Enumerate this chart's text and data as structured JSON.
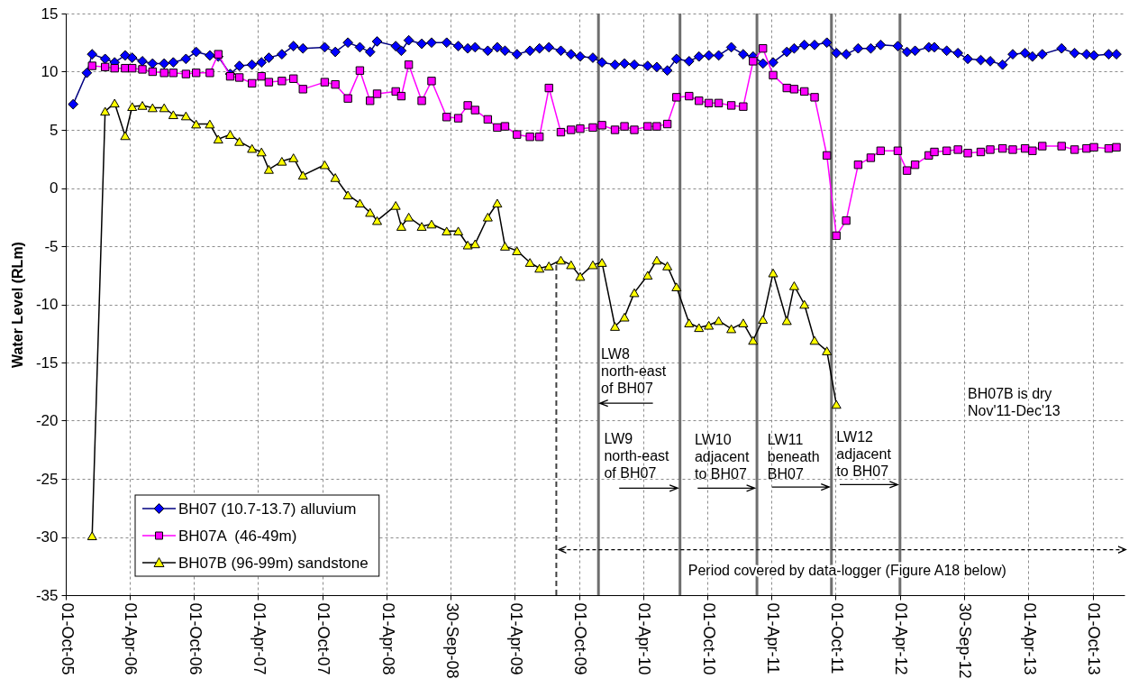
{
  "chart_data": {
    "type": "line",
    "ylabel": "Water Level (RLm)",
    "xlim": [
      "2005-10-01",
      "2013-12-31"
    ],
    "xticks": [
      {
        "value": "2005-10-01",
        "label": "01-Oct-05"
      },
      {
        "value": "2006-04-01",
        "label": "01-Apr-06"
      },
      {
        "value": "2006-10-01",
        "label": "01-Oct-06"
      },
      {
        "value": "2007-04-01",
        "label": "01-Apr-07"
      },
      {
        "value": "2007-10-01",
        "label": "01-Oct-07"
      },
      {
        "value": "2008-04-01",
        "label": "01-Apr-08"
      },
      {
        "value": "2008-09-30",
        "label": "30-Sep-08"
      },
      {
        "value": "2009-04-01",
        "label": "01-Apr-09"
      },
      {
        "value": "2009-10-01",
        "label": "01-Oct-09"
      },
      {
        "value": "2010-04-01",
        "label": "01-Apr-10"
      },
      {
        "value": "2010-10-01",
        "label": "01-Oct-10"
      },
      {
        "value": "2011-04-01",
        "label": "01-Apr-11"
      },
      {
        "value": "2011-10-01",
        "label": "01-Oct-11"
      },
      {
        "value": "2012-04-01",
        "label": "01-Apr-12"
      },
      {
        "value": "2012-09-30",
        "label": "30-Sep-12"
      },
      {
        "value": "2013-04-01",
        "label": "01-Apr-13"
      },
      {
        "value": "2013-10-01",
        "label": "01-Oct-13"
      }
    ],
    "ylim": [
      -35,
      15
    ],
    "yticks": [
      -35,
      -30,
      -25,
      -20,
      -15,
      -10,
      -5,
      0,
      5,
      10,
      15
    ],
    "grid": true,
    "legend": "bottom left",
    "series": [
      {
        "name": "BH07 (10.7-13.7) alluvium",
        "color": "#000080",
        "marker": "diamond",
        "x": [
          "2005-10-22",
          "2005-11-30",
          "2005-12-15",
          "2006-01-21",
          "2006-02-17",
          "2006-03-19",
          "2006-04-08",
          "2006-05-07",
          "2006-06-05",
          "2006-07-08",
          "2006-08-03",
          "2006-09-08",
          "2006-10-07",
          "2006-11-15",
          "2006-12-09",
          "2007-01-12",
          "2007-02-07",
          "2007-03-15",
          "2007-04-11",
          "2007-05-02",
          "2007-06-08",
          "2007-07-11",
          "2007-08-07",
          "2007-10-08",
          "2007-11-07",
          "2007-12-13",
          "2008-01-16",
          "2008-02-14",
          "2008-03-05",
          "2008-04-27",
          "2008-05-13",
          "2008-06-03",
          "2008-07-10",
          "2008-08-07",
          "2008-09-19",
          "2008-10-22",
          "2008-11-18",
          "2008-12-09",
          "2009-01-14",
          "2009-02-10",
          "2009-03-04",
          "2009-04-07",
          "2009-05-14",
          "2009-06-10",
          "2009-07-07",
          "2009-08-10",
          "2009-09-08",
          "2009-10-04",
          "2009-11-09",
          "2009-12-05",
          "2010-01-11",
          "2010-02-07",
          "2010-03-07",
          "2010-04-14",
          "2010-05-10",
          "2010-06-09",
          "2010-07-05",
          "2010-08-10",
          "2010-09-07",
          "2010-10-05",
          "2010-11-02",
          "2010-12-08",
          "2011-01-11",
          "2011-02-08",
          "2011-03-08",
          "2011-04-06",
          "2011-05-15",
          "2011-06-05",
          "2011-07-04",
          "2011-08-02",
          "2011-09-06",
          "2011-10-03",
          "2011-10-31",
          "2011-12-04",
          "2012-01-09",
          "2012-02-06",
          "2012-03-26",
          "2012-04-21",
          "2012-05-14",
          "2012-06-22",
          "2012-07-08",
          "2012-08-12",
          "2012-09-13",
          "2012-10-11",
          "2012-11-17",
          "2012-12-14",
          "2013-01-18",
          "2013-02-16",
          "2013-03-23",
          "2013-04-13",
          "2013-05-11",
          "2013-07-05",
          "2013-08-11",
          "2013-09-14",
          "2013-10-05",
          "2013-11-16",
          "2013-12-08"
        ],
        "values": [
          7.2,
          9.9,
          11.5,
          11.1,
          10.8,
          11.4,
          11.2,
          10.9,
          10.7,
          10.7,
          10.8,
          11.1,
          11.7,
          11.4,
          11.3,
          9.8,
          10.5,
          10.6,
          10.8,
          11.2,
          11.5,
          12.2,
          12.0,
          12.1,
          11.7,
          12.5,
          12.1,
          11.7,
          12.6,
          12.2,
          11.8,
          12.7,
          12.4,
          12.5,
          12.5,
          12.2,
          12.0,
          12.1,
          11.8,
          12.1,
          11.8,
          11.5,
          11.8,
          12.0,
          12.1,
          11.8,
          11.5,
          11.3,
          11.2,
          10.8,
          10.6,
          10.7,
          10.6,
          10.5,
          10.4,
          10.1,
          11.1,
          10.9,
          11.3,
          11.4,
          11.4,
          12.1,
          11.5,
          11.3,
          10.7,
          10.8,
          11.7,
          12.0,
          12.3,
          12.3,
          12.5,
          11.6,
          11.5,
          12.0,
          12.0,
          12.3,
          12.2,
          11.7,
          11.8,
          12.1,
          12.1,
          11.8,
          11.6,
          11.1,
          11.0,
          10.9,
          10.6,
          11.5,
          11.6,
          11.3,
          11.5,
          12.0,
          11.6,
          11.5,
          11.4,
          11.5,
          11.5
        ],
        "colors": [
          "#0000ff",
          "#0000ff",
          "#0000ff",
          "#0000ff",
          "#0000ff",
          "#0000ff",
          "#0000ff",
          "#0000ff",
          "#0000ff",
          "#0000ff",
          "#0000ff",
          "#0000ff",
          "#0000ff",
          "#0000ff",
          "#0000ff",
          "#0000ff",
          "#0000ff",
          "#0000ff",
          "#0000ff",
          "#0000ff",
          "#0000ff",
          "#0000ff",
          "#0000ff",
          "#0000ff",
          "#0000ff",
          "#0000ff",
          "#0000ff",
          "#0000ff",
          "#0000ff",
          "#0000ff",
          "#0000ff",
          "#0000ff",
          "#0000ff",
          "#0000ff",
          "#0000ff",
          "#0000ff",
          "#0000ff",
          "#0000ff",
          "#0000ff",
          "#0000ff",
          "#0000ff",
          "#0000ff",
          "#0000ff",
          "#0000ff",
          "#0000ff",
          "#0000ff",
          "#0000ff",
          "#0000ff",
          "#0000ff",
          "#0000ff",
          "#0000ff",
          "#0000ff",
          "#0000ff",
          "#0000ff",
          "#0000ff",
          "#0000ff",
          "#0000ff",
          "#0000ff",
          "#0000ff",
          "#0000ff",
          "#0000ff",
          "#0000ff",
          "#0000ff",
          "#0000ff",
          "#0000ff",
          "#0000ff",
          "#0000ff",
          "#0000ff",
          "#0000ff",
          "#0000ff",
          "#0000ff",
          "#0000ff",
          "#0000ff",
          "#0000ff",
          "#0000ff",
          "#0000ff",
          "#0000ff",
          "#0000ff",
          "#0000ff",
          "#0000ff",
          "#0000ff",
          "#0000ff",
          "#0000ff",
          "#0000ff",
          "#0000ff",
          "#0000ff",
          "#0000ff",
          "#0000ff",
          "#0000ff",
          "#0000ff",
          "#0000ff",
          "#0000ff",
          "#0000ff",
          "#0000ff",
          "#0000ff",
          "#0000ff",
          "#0000ff"
        ]
      },
      {
        "name": "BH07A  (46-49m)",
        "color": "#ff00ff",
        "marker": "square",
        "x": [
          "2005-12-15",
          "2006-01-21",
          "2006-02-17",
          "2006-03-19",
          "2006-04-08",
          "2006-05-07",
          "2006-06-05",
          "2006-07-08",
          "2006-08-03",
          "2006-09-08",
          "2006-10-07",
          "2006-11-15",
          "2006-12-09",
          "2007-01-12",
          "2007-02-07",
          "2007-03-15",
          "2007-04-11",
          "2007-05-02",
          "2007-06-08",
          "2007-07-11",
          "2007-08-07",
          "2007-10-08",
          "2007-11-07",
          "2007-12-13",
          "2008-01-16",
          "2008-02-14",
          "2008-03-05",
          "2008-04-27",
          "2008-05-13",
          "2008-06-03",
          "2008-07-10",
          "2008-08-07",
          "2008-09-19",
          "2008-10-22",
          "2008-11-18",
          "2008-12-09",
          "2009-01-14",
          "2009-02-10",
          "2009-03-04",
          "2009-04-07",
          "2009-05-14",
          "2009-06-10",
          "2009-07-07",
          "2009-08-10",
          "2009-09-08",
          "2009-10-04",
          "2009-11-09",
          "2009-12-05",
          "2010-01-11",
          "2010-02-07",
          "2010-03-07",
          "2010-04-14",
          "2010-05-10",
          "2010-06-09",
          "2010-07-05",
          "2010-08-10",
          "2010-09-07",
          "2010-10-05",
          "2010-11-02",
          "2010-12-08",
          "2011-01-11",
          "2011-02-08",
          "2011-03-08",
          "2011-04-06",
          "2011-05-15",
          "2011-06-05",
          "2011-07-04",
          "2011-08-02",
          "2011-09-06",
          "2011-10-03",
          "2011-10-31",
          "2011-12-04",
          "2012-01-09",
          "2012-02-06",
          "2012-03-26",
          "2012-04-21",
          "2012-05-14",
          "2012-06-22",
          "2012-07-08",
          "2012-08-12",
          "2012-09-13",
          "2012-10-11",
          "2012-11-17",
          "2012-12-14",
          "2013-01-18",
          "2013-02-16",
          "2013-03-23",
          "2013-04-13",
          "2013-05-11",
          "2013-07-05",
          "2013-08-11",
          "2013-09-14",
          "2013-10-05",
          "2013-11-16",
          "2013-12-08"
        ],
        "values": [
          10.5,
          10.4,
          10.3,
          10.3,
          10.3,
          10.2,
          10.0,
          9.9,
          9.9,
          9.8,
          9.9,
          9.9,
          11.5,
          9.6,
          9.5,
          9.0,
          9.6,
          9.1,
          9.2,
          9.4,
          8.5,
          9.1,
          8.9,
          7.7,
          10.1,
          7.5,
          8.1,
          8.3,
          7.9,
          10.6,
          7.5,
          9.2,
          6.1,
          6.0,
          7.1,
          6.7,
          5.9,
          5.2,
          5.3,
          4.6,
          4.4,
          4.4,
          8.6,
          4.8,
          5.0,
          5.1,
          5.2,
          5.4,
          5.0,
          5.3,
          5.0,
          5.3,
          5.3,
          5.5,
          7.8,
          7.9,
          7.5,
          7.3,
          7.3,
          7.1,
          7.0,
          10.9,
          12.0,
          9.7,
          8.6,
          8.5,
          8.3,
          7.8,
          2.8,
          -4.1,
          -2.8,
          2.0,
          2.6,
          3.2,
          3.2,
          1.5,
          2.0,
          2.8,
          3.1,
          3.2,
          3.3,
          3.0,
          3.1,
          3.3,
          3.4,
          3.3,
          3.4,
          3.2,
          3.6,
          3.6,
          3.3,
          3.4,
          3.5,
          3.4,
          3.5
        ]
      },
      {
        "name": "BH07B (96-99m) sandstone",
        "color": "#000000",
        "marker": "triangle",
        "x": [
          "2005-12-15",
          "2006-01-21",
          "2006-02-17",
          "2006-03-19",
          "2006-04-08",
          "2006-05-07",
          "2006-06-05",
          "2006-07-08",
          "2006-08-03",
          "2006-09-08",
          "2006-10-07",
          "2006-11-15",
          "2006-12-09",
          "2007-01-12",
          "2007-02-07",
          "2007-03-15",
          "2007-04-11",
          "2007-05-02",
          "2007-06-08",
          "2007-07-11",
          "2007-08-07",
          "2007-10-08",
          "2007-11-07",
          "2007-12-13",
          "2008-01-16",
          "2008-02-14",
          "2008-03-05",
          "2008-04-27",
          "2008-05-13",
          "2008-06-03",
          "2008-07-10",
          "2008-08-07",
          "2008-09-19",
          "2008-10-22",
          "2008-11-18",
          "2008-12-09",
          "2009-01-14",
          "2009-02-10",
          "2009-03-04",
          "2009-04-07",
          "2009-05-14",
          "2009-06-10",
          "2009-07-07",
          "2009-08-10",
          "2009-09-08",
          "2009-10-04",
          "2009-11-09",
          "2009-12-05",
          "2010-01-11",
          "2010-02-07",
          "2010-03-07",
          "2010-04-14",
          "2010-05-10",
          "2010-06-09",
          "2010-07-05",
          "2010-08-10",
          "2010-09-07",
          "2010-10-05",
          "2010-11-02",
          "2010-12-08",
          "2011-01-11",
          "2011-02-08",
          "2011-03-08",
          "2011-04-06",
          "2011-05-15",
          "2011-06-05",
          "2011-07-04",
          "2011-08-02",
          "2011-09-06",
          "2011-10-03"
        ],
        "values": [
          -29.9,
          6.6,
          7.3,
          4.5,
          7.0,
          7.1,
          6.9,
          6.9,
          6.3,
          6.2,
          5.5,
          5.5,
          4.2,
          4.6,
          4.0,
          3.4,
          3.1,
          1.6,
          2.3,
          2.6,
          1.1,
          2.0,
          0.9,
          -0.6,
          -1.3,
          -2.1,
          -2.8,
          -1.5,
          -3.3,
          -2.5,
          -3.3,
          -3.1,
          -3.7,
          -3.7,
          -4.9,
          -4.8,
          -2.5,
          -1.3,
          -5.0,
          -5.4,
          -6.4,
          -6.9,
          -6.7,
          -6.2,
          -6.6,
          -7.6,
          -6.6,
          -6.4,
          -11.9,
          -11.1,
          -9.0,
          -7.5,
          -6.2,
          -6.7,
          -8.5,
          -11.6,
          -12.0,
          -11.8,
          -11.4,
          -12.1,
          -11.6,
          -13.1,
          -11.3,
          -7.3,
          -11.4,
          -8.4,
          -10.0,
          -13.1,
          -14.0,
          -18.6
        ],
        "colors": [
          "#ffff00",
          "#ffff00",
          "#ffff00",
          "#ffff00",
          "#ffff00",
          "#ffff00",
          "#ffff00",
          "#ffff00",
          "#ffff00",
          "#ffff00",
          "#ffff00",
          "#ffff00",
          "#ffff00",
          "#ffff00",
          "#ffff00",
          "#ffff00",
          "#ffff00",
          "#ffff00",
          "#ffff00",
          "#ffff00",
          "#ffff00",
          "#ffff00",
          "#ffff00",
          "#ffff00",
          "#ffff00",
          "#ffff00",
          "#ffff00",
          "#ffff00",
          "#ffff00",
          "#ffff00",
          "#ffff00",
          "#ffff00",
          "#ffff00",
          "#ffff00",
          "#ffff00",
          "#ffff00",
          "#ffff00",
          "#ffff00",
          "#ffff00",
          "#ffff00",
          "#ffff00",
          "#ffff00",
          "#ffff00",
          "#ffff00",
          "#ffff00",
          "#ffff00",
          "#ffff00",
          "#ffff00",
          "#ffff00",
          "#ffff00",
          "#ffff00",
          "#ffff00",
          "#ffff00",
          "#ffff00",
          "#ffff00",
          "#ffff00",
          "#ffff00",
          "#ffff00",
          "#ffff00",
          "#ffff00",
          "#ffff00",
          "#ffff00",
          "#ffff00",
          "#ffff00",
          "#ffff00",
          "#ffff00",
          "#ffff00",
          "#ffff00",
          "#ffff00",
          "#ffff00"
        ]
      }
    ],
    "ref_lines": [
      {
        "axis": "x",
        "value": "2009-07-28",
        "color": "#404040",
        "line_style": "dashed"
      },
      {
        "axis": "x",
        "value": "2009-11-25",
        "color": "#6e6e6e"
      },
      {
        "axis": "x",
        "value": "2010-07-15",
        "color": "#6e6e6e"
      },
      {
        "axis": "x",
        "value": "2011-02-19",
        "color": "#6e6e6e"
      },
      {
        "axis": "x",
        "value": "2011-09-19",
        "color": "#6e6e6e"
      },
      {
        "axis": "x",
        "value": "2012-04-01",
        "color": "#6e6e6e"
      }
    ],
    "annotations": [
      {
        "text": "LW8\nnorth-east\nof BH07",
        "x": "2009-11-25",
        "y": -18.5
      },
      {
        "text": "LW9\nnorth-east\nof BH07",
        "x": "2010-07-15",
        "y": -25.8
      },
      {
        "text": "LW10\nadjacent\nto BH07",
        "x": "2011-02-19",
        "y": -25.8
      },
      {
        "text": "LW11\nbeneath\nBH07",
        "x": "2011-09-19",
        "y": -25.7
      },
      {
        "text": "LW12\nadjacent\nto BH07",
        "x": "2012-04-01",
        "y": -25.5
      },
      "BH07B is dry\nNov'11-Dec'13",
      "Period covered by data-logger (Figure A18 below)"
    ]
  }
}
